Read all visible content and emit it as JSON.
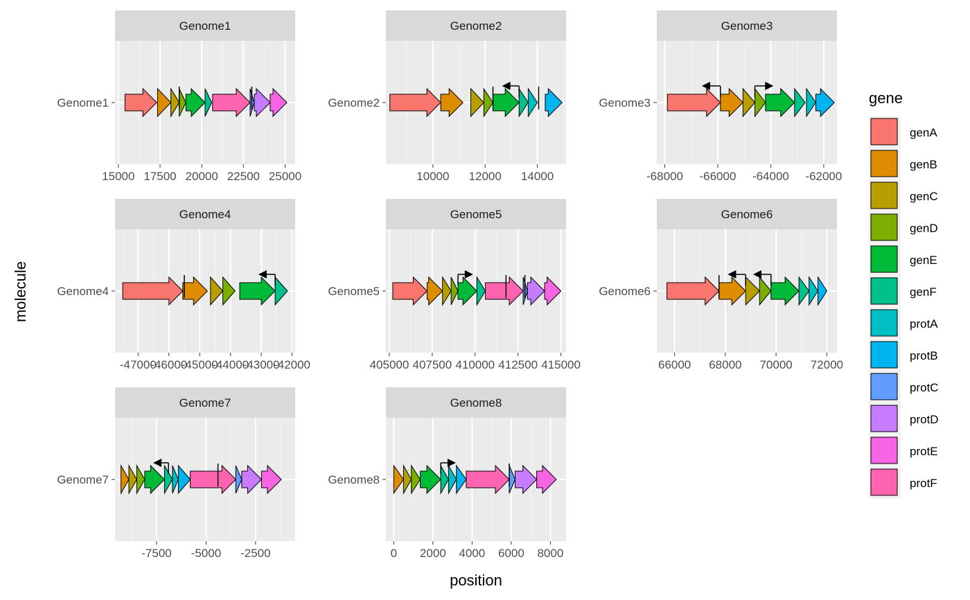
{
  "chart_data": {
    "type": "gene-arrow-map",
    "xlabel": "position",
    "ylabel": "molecule",
    "legend": {
      "title": "gene",
      "placement": "right",
      "entries": [
        {
          "label": "genA",
          "color": "#F8766D"
        },
        {
          "label": "genB",
          "color": "#DE8C00"
        },
        {
          "label": "genC",
          "color": "#B79F00"
        },
        {
          "label": "genD",
          "color": "#7CAE00"
        },
        {
          "label": "genE",
          "color": "#00BA38"
        },
        {
          "label": "genF",
          "color": "#00C08B"
        },
        {
          "label": "protA",
          "color": "#00BFC4"
        },
        {
          "label": "protB",
          "color": "#00B4F0"
        },
        {
          "label": "protC",
          "color": "#619CFF"
        },
        {
          "label": "protD",
          "color": "#C77CFF"
        },
        {
          "label": "protE",
          "color": "#F564E3"
        },
        {
          "label": "protF",
          "color": "#FF64B0"
        }
      ]
    },
    "panels": [
      {
        "strip": "Genome1",
        "molecule_label": "Genome1",
        "xlim": [
          14800,
          25600
        ],
        "breaks": [
          15000,
          17500,
          20000,
          22500,
          25000
        ],
        "break_labels": [
          "15000",
          "17500",
          "20000",
          "22500",
          "25000"
        ],
        "genes": [
          {
            "gene": "genA",
            "start": 15400,
            "end": 17300
          },
          {
            "gene": "genB",
            "start": 17350,
            "end": 18150
          },
          {
            "gene": "genC",
            "start": 18150,
            "end": 18650
          },
          {
            "gene": "genD",
            "start": 18650,
            "end": 19050
          },
          {
            "gene": "genE",
            "start": 19050,
            "end": 20200
          },
          {
            "gene": "genF",
            "start": 20200,
            "end": 20600
          },
          {
            "gene": "protF",
            "start": 20650,
            "end": 22900
          },
          {
            "gene": "protC",
            "start": 22900,
            "end": 23150
          },
          {
            "gene": "protD",
            "start": 23150,
            "end": 24100
          },
          {
            "gene": "protE",
            "start": 24100,
            "end": 25100
          }
        ],
        "markers": [
          {
            "pos": 18650,
            "label_dir": "none"
          },
          {
            "pos": 23000,
            "label_dir": "none"
          }
        ]
      },
      {
        "strip": "Genome2",
        "molecule_label": "Genome2",
        "xlim": [
          8200,
          15100
        ],
        "breaks": [
          10000,
          12000,
          14000
        ],
        "break_labels": [
          "10000",
          "12000",
          "14000"
        ],
        "genes": [
          {
            "gene": "genA",
            "start": 8350,
            "end": 10300
          },
          {
            "gene": "genB",
            "start": 10300,
            "end": 11150
          },
          {
            "gene": "genC",
            "start": 11450,
            "end": 11950
          },
          {
            "gene": "genD",
            "start": 11950,
            "end": 12300
          },
          {
            "gene": "genE",
            "start": 12300,
            "end": 13300
          },
          {
            "gene": "genF",
            "start": 13300,
            "end": 13650
          },
          {
            "gene": "protA",
            "start": 13650,
            "end": 14000
          },
          {
            "gene": "protB",
            "start": 14300,
            "end": 14950
          }
        ],
        "markers": [
          {
            "pos": 13300,
            "label_dir": "left",
            "arrow_to": 12700
          },
          {
            "pos": 14050,
            "label_dir": "none"
          },
          {
            "pos": 12300,
            "label_dir": "none"
          }
        ]
      },
      {
        "strip": "Genome3",
        "molecule_label": "Genome3",
        "xlim": [
          -68300,
          -61500
        ],
        "breaks": [
          -68000,
          -66000,
          -64000,
          -62000
        ],
        "break_labels": [
          "-68000",
          "-66000",
          "-64000",
          "-62000"
        ],
        "genes": [
          {
            "gene": "genA",
            "start": -67900,
            "end": -65900
          },
          {
            "gene": "genB",
            "start": -65900,
            "end": -65050
          },
          {
            "gene": "genC",
            "start": -65050,
            "end": -64600
          },
          {
            "gene": "genD",
            "start": -64600,
            "end": -64200
          },
          {
            "gene": "genE",
            "start": -64200,
            "end": -63100
          },
          {
            "gene": "genF",
            "start": -63100,
            "end": -62700
          },
          {
            "gene": "protA",
            "start": -62650,
            "end": -62300
          },
          {
            "gene": "protB",
            "start": -62300,
            "end": -61600
          }
        ],
        "markers": [
          {
            "pos": -65900,
            "label_dir": "left",
            "arrow_to": -66550
          },
          {
            "pos": -64600,
            "label_dir": "right",
            "arrow_to": -63950
          }
        ]
      },
      {
        "strip": "Genome4",
        "molecule_label": "Genome4",
        "xlim": [
          -47750,
          -41900
        ],
        "breaks": [
          -47000,
          -46000,
          -45000,
          -44000,
          -43000,
          -42000
        ],
        "break_labels": [
          "-47000",
          "-46000",
          "-45000",
          "-44000",
          "-43000",
          "-42000"
        ],
        "genes": [
          {
            "gene": "genA",
            "start": -47500,
            "end": -45550
          },
          {
            "gene": "genB",
            "start": -45550,
            "end": -44750
          },
          {
            "gene": "genC",
            "start": -44650,
            "end": -44250
          },
          {
            "gene": "genD",
            "start": -44250,
            "end": -43850
          },
          {
            "gene": "genE",
            "start": -43700,
            "end": -42550
          },
          {
            "gene": "genF",
            "start": -42550,
            "end": -42150
          }
        ],
        "markers": [
          {
            "pos": -45500,
            "label_dir": "none"
          },
          {
            "pos": -42550,
            "label_dir": "left",
            "arrow_to": -43050
          }
        ]
      },
      {
        "strip": "Genome5",
        "molecule_label": "Genome5",
        "xlim": [
          404800,
          415300
        ],
        "breaks": [
          405000,
          407500,
          410000,
          412500,
          415000
        ],
        "break_labels": [
          "405000",
          "407500",
          "410000",
          "412500",
          "415000"
        ],
        "genes": [
          {
            "gene": "genA",
            "start": 405200,
            "end": 407200
          },
          {
            "gene": "genB",
            "start": 407200,
            "end": 408100
          },
          {
            "gene": "genC",
            "start": 408100,
            "end": 408600
          },
          {
            "gene": "genD",
            "start": 408600,
            "end": 409000
          },
          {
            "gene": "genE",
            "start": 409000,
            "end": 410100
          },
          {
            "gene": "genF",
            "start": 410100,
            "end": 410600
          },
          {
            "gene": "protF",
            "start": 410600,
            "end": 412800
          },
          {
            "gene": "protC",
            "start": 412800,
            "end": 413050
          },
          {
            "gene": "protD",
            "start": 413050,
            "end": 414050
          },
          {
            "gene": "protE",
            "start": 414050,
            "end": 415000
          }
        ],
        "markers": [
          {
            "pos": 409000,
            "label_dir": "right",
            "arrow_to": 409800
          },
          {
            "pos": 411800,
            "label_dir": "none"
          },
          {
            "pos": 412900,
            "label_dir": "none"
          }
        ]
      },
      {
        "strip": "Genome6",
        "molecule_label": "Genome6",
        "xlim": [
          65300,
          72400
        ],
        "breaks": [
          66000,
          68000,
          70000,
          72000
        ],
        "break_labels": [
          "66000",
          "68000",
          "70000",
          "72000"
        ],
        "genes": [
          {
            "gene": "genA",
            "start": 65700,
            "end": 67750
          },
          {
            "gene": "genB",
            "start": 67750,
            "end": 68800
          },
          {
            "gene": "genC",
            "start": 68800,
            "end": 69350
          },
          {
            "gene": "genD",
            "start": 69350,
            "end": 69800
          },
          {
            "gene": "genE",
            "start": 69800,
            "end": 70900
          },
          {
            "gene": "genF",
            "start": 70900,
            "end": 71300
          },
          {
            "gene": "protA",
            "start": 71300,
            "end": 71650
          },
          {
            "gene": "protB",
            "start": 71650,
            "end": 72000
          }
        ],
        "markers": [
          {
            "pos": 67750,
            "label_dir": "none"
          },
          {
            "pos": 68800,
            "label_dir": "left",
            "arrow_to": 68150
          },
          {
            "pos": 69800,
            "label_dir": "left",
            "arrow_to": 69150
          }
        ]
      },
      {
        "strip": "Genome7",
        "molecule_label": "Genome7",
        "xlim": [
          -9600,
          -500
        ],
        "breaks": [
          -7500,
          -5000,
          -2500
        ],
        "break_labels": [
          "-7500",
          "-5000",
          "-2500"
        ],
        "genes": [
          {
            "gene": "genB",
            "start": -9300,
            "end": -8900
          },
          {
            "gene": "genC",
            "start": -8900,
            "end": -8500
          },
          {
            "gene": "genD",
            "start": -8500,
            "end": -8100
          },
          {
            "gene": "genE",
            "start": -8100,
            "end": -7100
          },
          {
            "gene": "genF",
            "start": -7100,
            "end": -6700
          },
          {
            "gene": "protA",
            "start": -6700,
            "end": -6400
          },
          {
            "gene": "protB",
            "start": -6400,
            "end": -5800
          },
          {
            "gene": "protF",
            "start": -5800,
            "end": -3500
          },
          {
            "gene": "protC",
            "start": -3500,
            "end": -3200
          },
          {
            "gene": "protD",
            "start": -3200,
            "end": -2200
          },
          {
            "gene": "protE",
            "start": -2200,
            "end": -1200
          }
        ],
        "markers": [
          {
            "pos": -6900,
            "label_dir": "left",
            "arrow_to": -7600
          },
          {
            "pos": -4400,
            "label_dir": "none"
          }
        ]
      },
      {
        "strip": "Genome8",
        "molecule_label": "Genome8",
        "xlim": [
          -400,
          8800
        ],
        "breaks": [
          0,
          2000,
          4000,
          6000,
          8000
        ],
        "break_labels": [
          "0",
          "2000",
          "4000",
          "6000",
          "8000"
        ],
        "genes": [
          {
            "gene": "genB",
            "start": 0,
            "end": 500
          },
          {
            "gene": "genC",
            "start": 500,
            "end": 900
          },
          {
            "gene": "genD",
            "start": 900,
            "end": 1350
          },
          {
            "gene": "genE",
            "start": 1350,
            "end": 2400
          },
          {
            "gene": "genF",
            "start": 2400,
            "end": 2800
          },
          {
            "gene": "protA",
            "start": 2800,
            "end": 3200
          },
          {
            "gene": "protB",
            "start": 3200,
            "end": 3700
          },
          {
            "gene": "protF",
            "start": 3700,
            "end": 5900
          },
          {
            "gene": "protC",
            "start": 5900,
            "end": 6200
          },
          {
            "gene": "protD",
            "start": 6200,
            "end": 7300
          },
          {
            "gene": "protE",
            "start": 7300,
            "end": 8300
          }
        ],
        "markers": [
          {
            "pos": 2400,
            "label_dir": "right",
            "arrow_to": 3100
          },
          {
            "pos": 5900,
            "label_dir": "none"
          }
        ]
      }
    ]
  }
}
